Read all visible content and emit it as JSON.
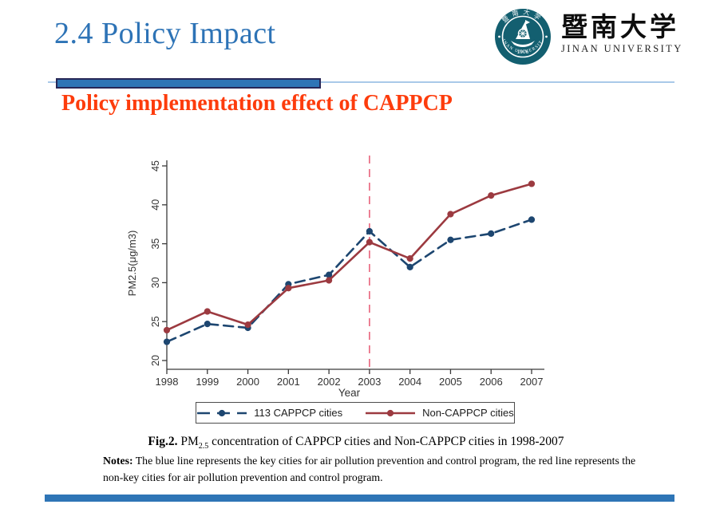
{
  "slide": {
    "title": "2.4 Policy Impact",
    "heading": "Policy implementation effect of CAPPCP",
    "colors": {
      "title_blue": "#2d73b6",
      "heading_red": "#fd3c0c",
      "bar_blue": "#2e75b6",
      "bar_border": "#272757",
      "thin_rule": "#a9c9e9"
    }
  },
  "logo": {
    "seal_top_text": "暨南大学",
    "seal_bottom_text": "JINAN UNIVERSITY",
    "seal_year": "1906",
    "seal_color": "#135f70",
    "cn_name": "暨南大学",
    "en_name": "JINAN UNIVERSITY"
  },
  "chart_data": {
    "type": "line",
    "x": [
      1998,
      1999,
      2000,
      2001,
      2002,
      2003,
      2004,
      2005,
      2006,
      2007
    ],
    "series": [
      {
        "name": "113 CAPPCP cities",
        "color": "#1d4670",
        "dash": "dashed",
        "values": [
          22.4,
          24.7,
          24.2,
          29.8,
          31.0,
          36.6,
          32.0,
          35.5,
          36.3,
          38.1
        ]
      },
      {
        "name": "Non-CAPPCP cities",
        "color": "#9c3a40",
        "dash": "solid",
        "values": [
          23.9,
          26.3,
          24.6,
          29.3,
          30.3,
          35.2,
          33.1,
          38.8,
          41.2,
          42.7
        ]
      }
    ],
    "xlabel": "Year",
    "ylabel": "PM2.5(μg/m3)",
    "ylim": [
      20,
      45
    ],
    "yticks": [
      20,
      25,
      30,
      35,
      40,
      45
    ],
    "vline": {
      "x": 2003,
      "color": "#e8637a",
      "style": "dashed"
    },
    "grid": false,
    "legend_position": "bottom",
    "axis_color": "#3a3a3a"
  },
  "caption": {
    "fig_label": "Fig.2.",
    "pm": " PM",
    "pm_sub": "2.5",
    "rest": " concentration of CAPPCP cities and Non-CAPPCP cities in 1998-2007"
  },
  "notes": {
    "label": "Notes:",
    "text": " The blue line represents the key cities for air pollution prevention and control program, the red line represents the non-key cities for air pollution prevention and control program."
  }
}
